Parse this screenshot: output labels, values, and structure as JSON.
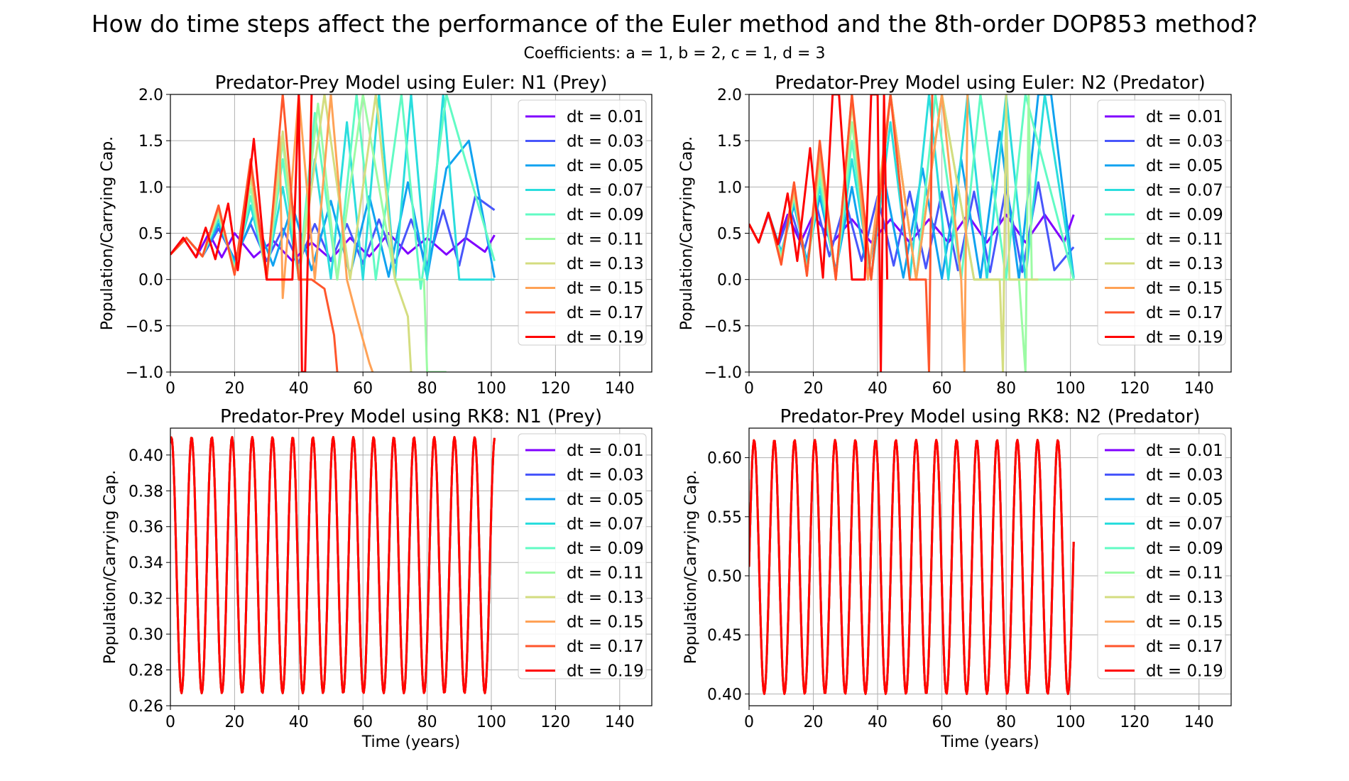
{
  "suptitle": "How do time steps affect the performance of the Euler method and the 8th-order DOP853 method?",
  "subtitle": "Coefficients: a = 1, b = 2, c = 1, d = 3",
  "series_colors": {
    "dt = 0.01": "#8000ff",
    "dt = 0.03": "#4856fb",
    "dt = 0.05": "#10a2f0",
    "dt = 0.07": "#2adddd",
    "dt = 0.09": "#62fbc4",
    "dt = 0.11": "#9cfba4",
    "dt = 0.13": "#d4dd80",
    "dt = 0.15": "#ffa256",
    "dt = 0.17": "#ff562c",
    "dt = 0.19": "#ff0000"
  },
  "chart_data": [
    {
      "type": "line",
      "title": "Predator-Prey Model using Euler: N1 (Prey)",
      "xlabel": "",
      "ylabel": "Population/Carrying Cap.",
      "xlim": [
        0,
        150
      ],
      "ylim": [
        -1.0,
        2.0
      ],
      "xticks": [
        "0",
        "20",
        "40",
        "60",
        "80",
        "100",
        "120",
        "140"
      ],
      "yticks": [
        "−1.0",
        "−0.5",
        "0.0",
        "0.5",
        "1.0",
        "1.5",
        "2.0"
      ],
      "grid": true,
      "legend_position": "upper right",
      "series": [
        {
          "name": "dt = 0.01",
          "x": [
            0,
            4,
            8,
            12,
            16,
            20,
            26,
            32,
            38,
            44,
            50,
            56,
            62,
            68,
            74,
            80,
            86,
            92,
            98,
            101
          ],
          "values": [
            0.27,
            0.45,
            0.24,
            0.5,
            0.24,
            0.5,
            0.24,
            0.42,
            0.2,
            0.4,
            0.22,
            0.45,
            0.25,
            0.5,
            0.28,
            0.45,
            0.27,
            0.45,
            0.3,
            0.48
          ]
        },
        {
          "name": "dt = 0.03",
          "x": [
            0,
            5,
            10,
            15,
            20,
            25,
            30,
            35,
            40,
            45,
            50,
            55,
            60,
            65,
            70,
            75,
            80,
            85,
            90,
            95,
            101
          ],
          "values": [
            0.27,
            0.45,
            0.25,
            0.55,
            0.22,
            0.6,
            0.2,
            0.55,
            0.18,
            0.6,
            0.2,
            0.6,
            0.17,
            0.65,
            0.18,
            0.65,
            0.15,
            0.75,
            0.15,
            0.9,
            0.75
          ]
        },
        {
          "name": "dt = 0.05",
          "x": [
            0,
            5,
            10,
            15,
            20,
            26,
            32,
            38,
            44,
            50,
            56,
            62,
            68,
            74,
            80,
            86,
            93,
            101
          ],
          "values": [
            0.27,
            0.45,
            0.25,
            0.6,
            0.2,
            0.7,
            0.15,
            0.8,
            0.1,
            0.85,
            0.05,
            0.9,
            0.03,
            1.05,
            0.02,
            1.2,
            1.5,
            0.02
          ]
        },
        {
          "name": "dt = 0.07",
          "x": [
            0,
            5,
            10,
            15,
            20,
            25,
            30,
            35,
            40,
            45,
            50,
            55,
            60,
            65,
            70,
            75,
            80,
            85,
            90,
            101
          ],
          "values": [
            0.27,
            0.45,
            0.25,
            0.65,
            0.15,
            0.8,
            0.08,
            1.0,
            0.03,
            1.3,
            0.01,
            1.7,
            0.0,
            2.0,
            0.0,
            2.0,
            0.0,
            2.0,
            0.0,
            0.0
          ]
        },
        {
          "name": "dt = 0.09",
          "x": [
            0,
            5,
            10,
            15,
            20,
            25,
            30,
            35,
            40,
            45,
            52,
            58,
            64,
            72,
            78,
            86,
            101
          ],
          "values": [
            0.27,
            0.45,
            0.25,
            0.7,
            0.12,
            0.9,
            0.05,
            1.3,
            0.01,
            1.8,
            0.0,
            2.0,
            0.0,
            2.0,
            -0.1,
            2.0,
            0.2
          ]
        },
        {
          "name": "dt = 0.11",
          "x": [
            0,
            5,
            10,
            15,
            20,
            25,
            30,
            35,
            40,
            46,
            52,
            60,
            70,
            79,
            80,
            86
          ],
          "values": [
            0.27,
            0.45,
            0.25,
            0.7,
            0.1,
            1.0,
            0.03,
            1.5,
            0.0,
            1.9,
            0.0,
            2.0,
            0.0,
            0.0,
            -1.0,
            -1.0
          ]
        },
        {
          "name": "dt = 0.13",
          "x": [
            0,
            5,
            10,
            15,
            20,
            25,
            30,
            35,
            40,
            48,
            56,
            64,
            70,
            74,
            75
          ],
          "values": [
            0.27,
            0.45,
            0.25,
            0.75,
            0.08,
            1.1,
            0.02,
            1.6,
            0.0,
            2.0,
            0.0,
            2.0,
            0.0,
            -0.4,
            -1.0
          ]
        },
        {
          "name": "dt = 0.15",
          "x": [
            0,
            5,
            10,
            15,
            20,
            25,
            30,
            34,
            35,
            40,
            45,
            50,
            55,
            58,
            62,
            63
          ],
          "values": [
            0.27,
            0.45,
            0.25,
            0.78,
            0.06,
            1.2,
            0.01,
            1.55,
            -0.2,
            2.0,
            0.0,
            2.0,
            0.0,
            -0.4,
            -0.9,
            -1.0
          ]
        },
        {
          "name": "dt = 0.17",
          "x": [
            0,
            5,
            10,
            15,
            20,
            25,
            30,
            35,
            40,
            44,
            48,
            51,
            52
          ],
          "values": [
            0.27,
            0.45,
            0.25,
            0.8,
            0.05,
            1.3,
            0.0,
            2.0,
            0.0,
            0.0,
            -0.1,
            -0.6,
            -1.0
          ]
        },
        {
          "name": "dt = 0.19",
          "x": [
            0,
            4,
            8,
            11,
            14,
            18,
            21,
            25,
            26,
            30,
            38,
            40,
            41,
            42,
            44
          ],
          "values": [
            0.27,
            0.45,
            0.24,
            0.56,
            0.22,
            0.82,
            0.1,
            1.2,
            1.52,
            0.0,
            0.0,
            2.0,
            -1.0,
            -1.0,
            2.0
          ]
        }
      ]
    },
    {
      "type": "line",
      "title": "Predator-Prey Model using Euler: N2 (Predator)",
      "xlabel": "",
      "ylabel": "Population/Carrying Cap.",
      "xlim": [
        0,
        150
      ],
      "ylim": [
        -1.0,
        2.0
      ],
      "xticks": [
        "0",
        "20",
        "40",
        "60",
        "80",
        "100",
        "120",
        "140"
      ],
      "yticks": [
        "−1.0",
        "−0.5",
        "0.0",
        "0.5",
        "1.0",
        "1.5",
        "2.0"
      ],
      "grid": true,
      "legend_position": "upper right",
      "series": [
        {
          "name": "dt = 0.01",
          "x": [
            0,
            3,
            6,
            9,
            12,
            16,
            20,
            26,
            32,
            38,
            44,
            50,
            56,
            62,
            68,
            74,
            80,
            86,
            92,
            98,
            101
          ],
          "values": [
            0.6,
            0.4,
            0.7,
            0.4,
            0.7,
            0.4,
            0.7,
            0.4,
            0.65,
            0.4,
            0.65,
            0.4,
            0.65,
            0.4,
            0.7,
            0.4,
            0.7,
            0.4,
            0.7,
            0.4,
            0.7
          ]
        },
        {
          "name": "dt = 0.03",
          "x": [
            0,
            3,
            6,
            9,
            13,
            17,
            21,
            25,
            30,
            35,
            40,
            45,
            50,
            55,
            60,
            65,
            70,
            75,
            80,
            85,
            90,
            95,
            101
          ],
          "values": [
            0.6,
            0.4,
            0.72,
            0.35,
            0.75,
            0.3,
            0.8,
            0.25,
            0.85,
            0.2,
            0.9,
            0.15,
            0.95,
            0.12,
            0.95,
            0.1,
            0.95,
            0.08,
            1.0,
            0.08,
            1.05,
            0.1,
            0.35
          ]
        },
        {
          "name": "dt = 0.05",
          "x": [
            0,
            3,
            6,
            10,
            14,
            18,
            22,
            27,
            32,
            37,
            42,
            48,
            54,
            60,
            66,
            72,
            78,
            84,
            90,
            94,
            101
          ],
          "values": [
            0.6,
            0.4,
            0.72,
            0.3,
            0.8,
            0.2,
            0.9,
            0.1,
            1.0,
            0.05,
            1.1,
            0.02,
            1.2,
            0.01,
            1.3,
            0.01,
            1.6,
            0.0,
            2.0,
            2.0,
            0.02
          ]
        },
        {
          "name": "dt = 0.07",
          "x": [
            0,
            3,
            6,
            10,
            14,
            18,
            22,
            27,
            32,
            38,
            44,
            50,
            56,
            62,
            68,
            74,
            80,
            86,
            92,
            101
          ],
          "values": [
            0.6,
            0.4,
            0.72,
            0.28,
            0.85,
            0.15,
            1.0,
            0.05,
            1.3,
            0.01,
            1.7,
            0.0,
            2.0,
            0.0,
            2.0,
            0.0,
            2.0,
            0.0,
            2.0,
            0.0
          ]
        },
        {
          "name": "dt = 0.09",
          "x": [
            0,
            3,
            6,
            10,
            14,
            18,
            22,
            27,
            32,
            38,
            44,
            52,
            58,
            66,
            72,
            80,
            86,
            101
          ],
          "values": [
            0.6,
            0.4,
            0.72,
            0.25,
            0.9,
            0.1,
            1.1,
            0.03,
            1.5,
            0.0,
            2.0,
            0.0,
            2.0,
            0.0,
            2.0,
            0.0,
            2.0,
            0.0
          ]
        },
        {
          "name": "dt = 0.11",
          "x": [
            0,
            3,
            6,
            10,
            14,
            18,
            22,
            27,
            32,
            38,
            44,
            52,
            60,
            70,
            78,
            84,
            86,
            87,
            88,
            101
          ],
          "values": [
            0.6,
            0.4,
            0.72,
            0.22,
            0.92,
            0.08,
            1.2,
            0.02,
            1.7,
            0.0,
            2.0,
            0.0,
            2.0,
            0.0,
            0.0,
            0.0,
            -1.0,
            2.0,
            0.0,
            0.0
          ]
        },
        {
          "name": "dt = 0.13",
          "x": [
            0,
            3,
            6,
            10,
            14,
            18,
            22,
            27,
            32,
            38,
            44,
            52,
            60,
            70,
            78,
            79,
            80,
            81,
            90
          ],
          "values": [
            0.6,
            0.4,
            0.72,
            0.2,
            0.95,
            0.06,
            1.3,
            0.01,
            1.9,
            0.0,
            2.0,
            0.0,
            2.0,
            0.0,
            0.0,
            -1.0,
            2.0,
            0.0,
            0.0
          ]
        },
        {
          "name": "dt = 0.15",
          "x": [
            0,
            3,
            6,
            10,
            14,
            18,
            22,
            27,
            32,
            37,
            44,
            52,
            60,
            66,
            67,
            68
          ],
          "values": [
            0.6,
            0.4,
            0.72,
            0.18,
            1.0,
            0.05,
            1.4,
            0.0,
            2.0,
            0.0,
            2.0,
            0.0,
            2.0,
            0.0,
            -1.0,
            2.0
          ]
        },
        {
          "name": "dt = 0.17",
          "x": [
            0,
            3,
            6,
            10,
            14,
            18,
            22,
            27,
            32,
            38,
            44,
            50,
            55,
            56,
            57
          ],
          "values": [
            0.6,
            0.4,
            0.72,
            0.16,
            1.05,
            0.04,
            1.5,
            0.0,
            2.0,
            0.0,
            2.0,
            0.0,
            0.0,
            -1.0,
            2.0
          ]
        },
        {
          "name": "dt = 0.19",
          "x": [
            0,
            3,
            6,
            9,
            12,
            15,
            19,
            23,
            26,
            28,
            32,
            36,
            38,
            40,
            41,
            42,
            43
          ],
          "values": [
            0.6,
            0.4,
            0.72,
            0.38,
            0.93,
            0.2,
            1.42,
            0.02,
            2.0,
            2.0,
            0.0,
            0.0,
            2.0,
            2.0,
            -1.0,
            2.0,
            0.0
          ]
        }
      ]
    },
    {
      "type": "line",
      "title": "Predator-Prey Model using RK8: N1 (Prey)",
      "xlabel": "Time (years)",
      "ylabel": "Population/Carrying Cap.",
      "xlim": [
        0,
        150
      ],
      "ylim": [
        0.26,
        0.415
      ],
      "xticks": [
        "0",
        "20",
        "40",
        "60",
        "80",
        "100",
        "120",
        "140"
      ],
      "yticks": [
        "0.26",
        "0.28",
        "0.30",
        "0.32",
        "0.34",
        "0.36",
        "0.38",
        "0.40"
      ],
      "grid": true,
      "legend_position": "upper right",
      "period": 6.3,
      "phase": 0.45,
      "x_end": 101,
      "range": [
        0.267,
        0.41
      ],
      "series": [
        {
          "name": "dt = 0.01"
        },
        {
          "name": "dt = 0.03"
        },
        {
          "name": "dt = 0.05"
        },
        {
          "name": "dt = 0.07"
        },
        {
          "name": "dt = 0.09"
        },
        {
          "name": "dt = 0.11"
        },
        {
          "name": "dt = 0.13"
        },
        {
          "name": "dt = 0.15"
        },
        {
          "name": "dt = 0.17"
        },
        {
          "name": "dt = 0.19"
        }
      ]
    },
    {
      "type": "line",
      "title": "Predator-Prey Model using RK8: N2 (Predator)",
      "xlabel": "Time (years)",
      "ylabel": "Population/Carrying Cap.",
      "xlim": [
        0,
        150
      ],
      "ylim": [
        0.39,
        0.625
      ],
      "xticks": [
        "0",
        "20",
        "40",
        "60",
        "80",
        "100",
        "120",
        "140"
      ],
      "yticks": [
        "0.40",
        "0.45",
        "0.50",
        "0.55",
        "0.60"
      ],
      "grid": true,
      "legend_position": "upper right",
      "period": 6.3,
      "phase": 0.25,
      "x_end": 101,
      "range": [
        0.4,
        0.615
      ],
      "series": [
        {
          "name": "dt = 0.01"
        },
        {
          "name": "dt = 0.03"
        },
        {
          "name": "dt = 0.05"
        },
        {
          "name": "dt = 0.07"
        },
        {
          "name": "dt = 0.09"
        },
        {
          "name": "dt = 0.11"
        },
        {
          "name": "dt = 0.13"
        },
        {
          "name": "dt = 0.15"
        },
        {
          "name": "dt = 0.17"
        },
        {
          "name": "dt = 0.19"
        }
      ]
    }
  ]
}
